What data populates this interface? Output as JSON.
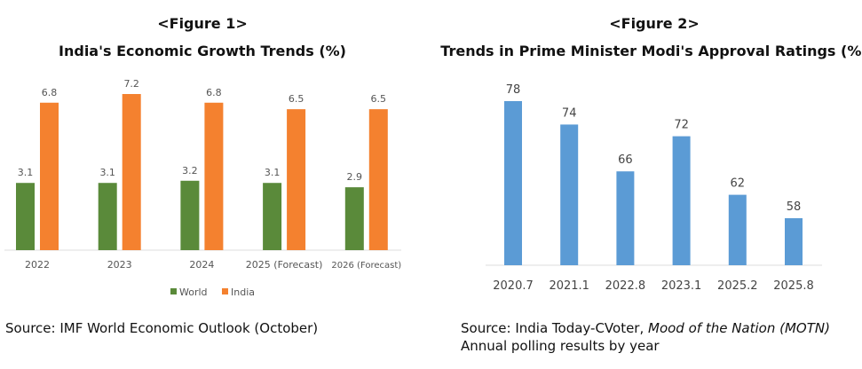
{
  "chart_data": [
    {
      "type": "bar",
      "figure_label": "<Figure 1>",
      "title": "India's Economic Growth Trends (%)",
      "categories": [
        "2022",
        "2023",
        "2024",
        "2025 (Forecast)",
        "2026 (Forecast)"
      ],
      "series": [
        {
          "name": "World",
          "values": [
            3.1,
            3.1,
            3.2,
            3.1,
            2.9
          ],
          "color": "#5a8a3a"
        },
        {
          "name": "India",
          "values": [
            6.8,
            7.2,
            6.8,
            6.5,
            6.5
          ],
          "color": "#f4812f"
        }
      ],
      "ylim": [
        0,
        7.2
      ],
      "grid": false,
      "legend": "bottom",
      "source": "Source: IMF World Economic Outlook (October)"
    },
    {
      "type": "bar",
      "figure_label": "<Figure 2>",
      "title": "Trends in Prime Minister Modi's Approval Ratings (%)",
      "categories": [
        "2020.7",
        "2021.1",
        "2022.8",
        "2023.1",
        "2025.2",
        "2025.8"
      ],
      "values": [
        78,
        74,
        66,
        72,
        62,
        58
      ],
      "color": "#5b9bd5",
      "ylim": [
        50,
        80
      ],
      "grid": false,
      "source_prefix": "Source: India Today-CVoter, ",
      "source_italic": "Mood of the Nation (MOTN)",
      "source_suffix": " Annual polling results by year"
    }
  ]
}
